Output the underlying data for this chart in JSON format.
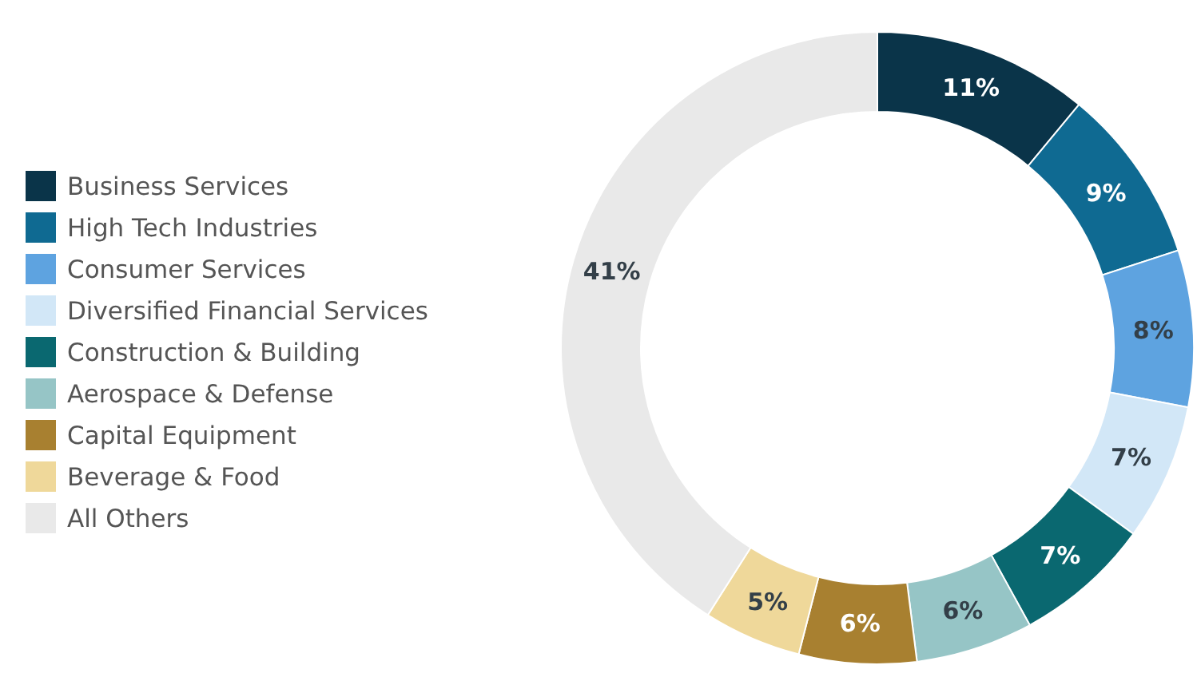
{
  "chart_data": {
    "type": "donut",
    "categories": [
      "Business Services",
      "High Tech Industries",
      "Consumer Services",
      "Diversified Financial Services",
      "Construction & Building",
      "Aerospace & Defense",
      "Capital Equipment",
      "Beverage & Food",
      "All Others"
    ],
    "values": [
      11,
      9,
      8,
      7,
      7,
      6,
      6,
      5,
      41
    ],
    "colors": [
      "#0a3449",
      "#0f6a92",
      "#5ea3e0",
      "#d2e7f7",
      "#0a6870",
      "#96c5c6",
      "#a88030",
      "#efd89a",
      "#e9e9e9"
    ],
    "value_labels": [
      "11%",
      "9%",
      "8%",
      "7%",
      "7%",
      "6%",
      "6%",
      "5%",
      "41%"
    ],
    "legend": "left"
  }
}
